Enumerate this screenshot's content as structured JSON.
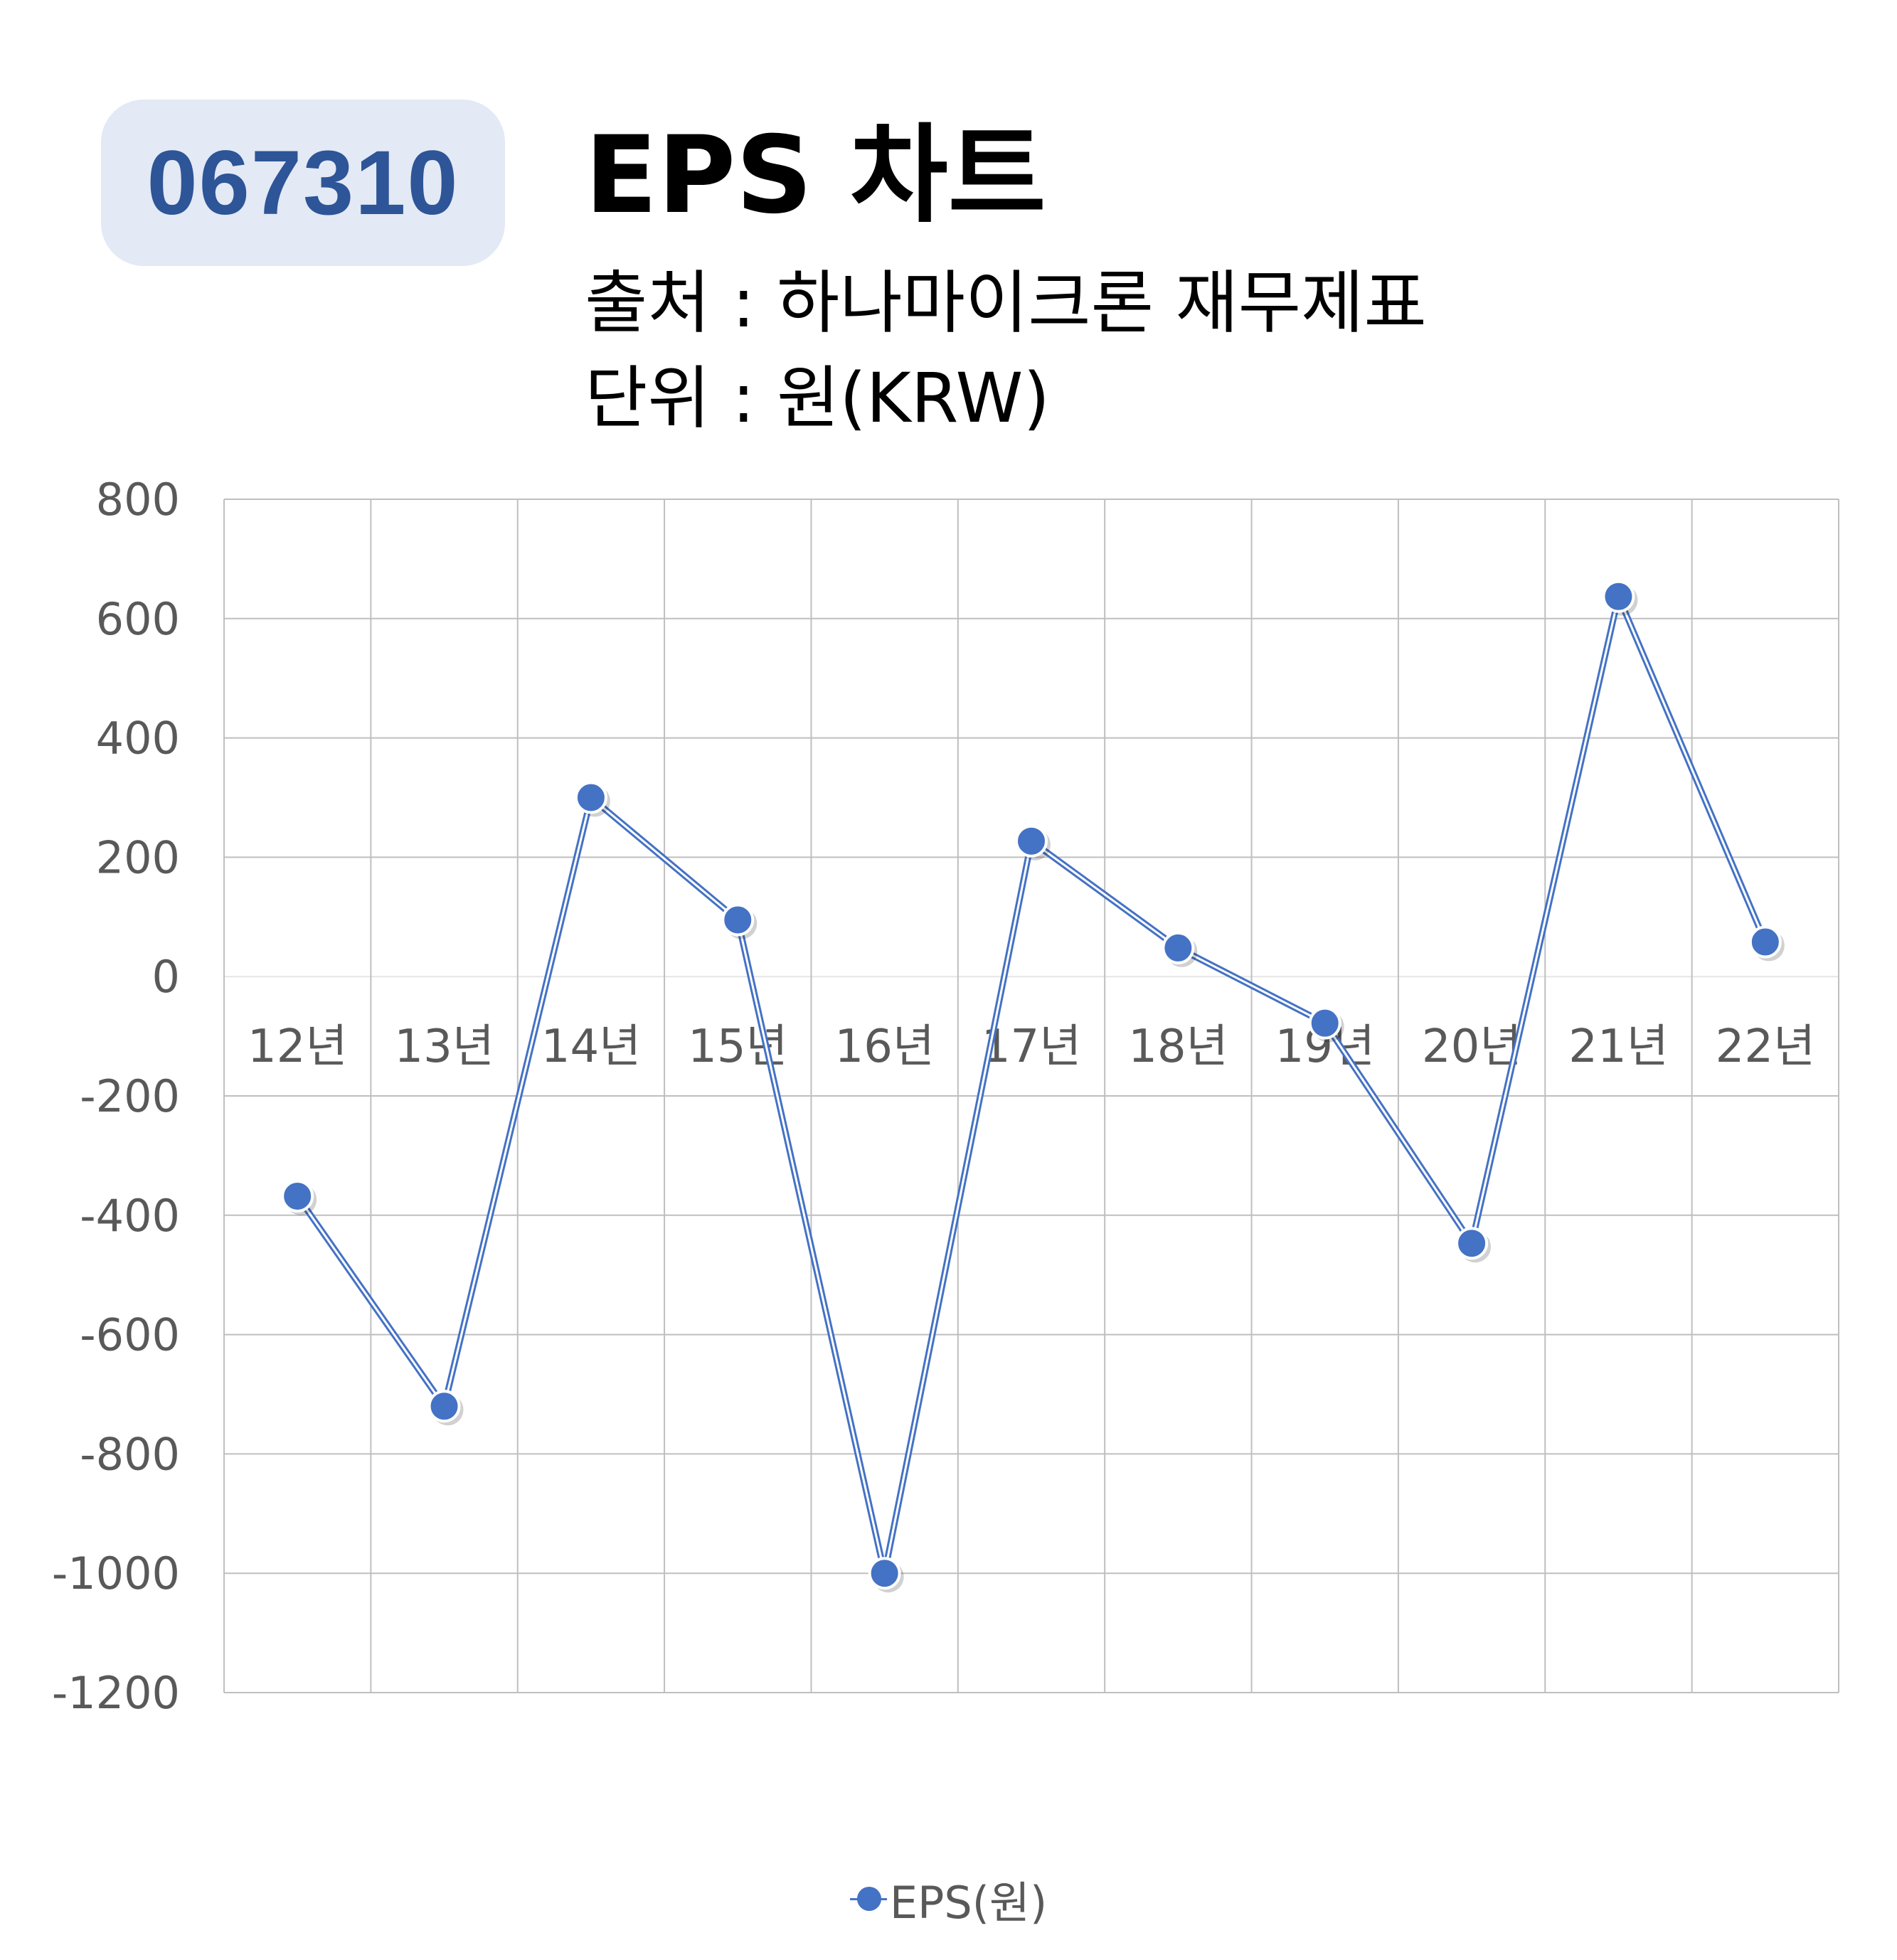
{
  "header": {
    "code_badge": "067310",
    "title": "EPS 차트",
    "source_line": "출처 : 하나마이크론 재무제표",
    "unit_line": "단위 : 원(KRW)"
  },
  "colors": {
    "series": "#4472c4",
    "badge_bg": "#e3e9f5",
    "badge_text": "#2d5597",
    "grid": "#bfbfbf",
    "tick_text": "#595959"
  },
  "chart_data": {
    "type": "line",
    "categories": [
      "12년",
      "13년",
      "14년",
      "15년",
      "16년",
      "17년",
      "18년",
      "19년",
      "20년",
      "21년",
      "22년"
    ],
    "series": [
      {
        "name": "EPS(원)",
        "values": [
          -368,
          -720,
          300,
          95,
          -1000,
          227,
          48,
          -78,
          -447,
          637,
          58
        ]
      }
    ],
    "ylim": [
      -1200,
      800
    ],
    "yticks": [
      800,
      600,
      400,
      200,
      0,
      -200,
      -400,
      -600,
      -800,
      -1000,
      -1200
    ],
    "grid": true,
    "legend": "bottom-center",
    "category_labels_position": "at-zero-line"
  }
}
